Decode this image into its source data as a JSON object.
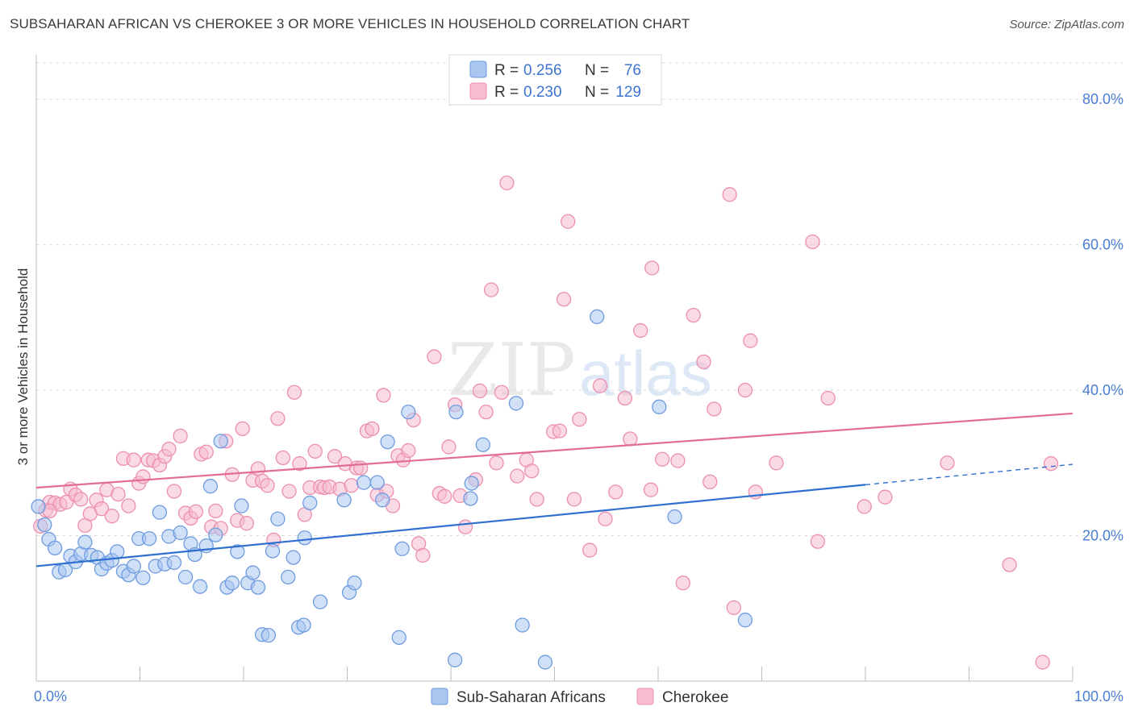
{
  "title": "SUBSAHARAN AFRICAN VS CHEROKEE 3 OR MORE VEHICLES IN HOUSEHOLD CORRELATION CHART",
  "source": "Source: ZipAtlas.com",
  "watermark": {
    "zip": "ZIP",
    "atlas": "atlas"
  },
  "legend": {
    "r_label": "R =",
    "n_label": "N =",
    "rows": [
      {
        "r": "0.256",
        "n": "76"
      },
      {
        "r": "0.230",
        "n": "129"
      }
    ]
  },
  "chart_data": {
    "type": "scatter",
    "xlabel": "",
    "ylabel": "3 or more Vehicles in Household",
    "xlim": [
      0,
      100
    ],
    "ylim": [
      0,
      85
    ],
    "grid": true,
    "x_tick_labels": [
      {
        "x": 0,
        "label": "0.0%"
      },
      {
        "x": 100,
        "label": "100.0%"
      }
    ],
    "y_tick_labels": [
      {
        "y": 20,
        "label": "20.0%"
      },
      {
        "y": 40,
        "label": "40.0%"
      },
      {
        "y": 60,
        "label": "60.0%"
      },
      {
        "y": 80,
        "label": "80.0%"
      }
    ],
    "colors": {
      "blue_fill": "#a9c6f0",
      "blue_stroke": "#6f9be0",
      "blue_line": "#2f6fd0",
      "pink_fill": "#f6bccf",
      "pink_stroke": "#ec8fae",
      "pink_line": "#e26c97"
    },
    "series": [
      {
        "name": "Sub-Saharan Africans",
        "r": 0.256,
        "n": 76,
        "trend": {
          "x0": 0,
          "y0": 15.8,
          "x1": 80,
          "y1": 27.0,
          "dash_x1": 100,
          "dash_y1": 29.8
        },
        "points": [
          [
            0.2,
            24.0
          ],
          [
            0.8,
            21.5
          ],
          [
            1.2,
            19.5
          ],
          [
            1.8,
            18.3
          ],
          [
            2.2,
            15.0
          ],
          [
            2.8,
            15.3
          ],
          [
            3.3,
            17.2
          ],
          [
            3.8,
            16.4
          ],
          [
            4.3,
            17.5
          ],
          [
            4.7,
            19.1
          ],
          [
            5.3,
            17.3
          ],
          [
            5.9,
            17.0
          ],
          [
            6.3,
            15.4
          ],
          [
            6.8,
            16.2
          ],
          [
            7.3,
            16.6
          ],
          [
            7.8,
            17.8
          ],
          [
            8.4,
            15.1
          ],
          [
            8.9,
            14.6
          ],
          [
            9.4,
            15.8
          ],
          [
            9.9,
            19.6
          ],
          [
            10.3,
            14.2
          ],
          [
            10.9,
            19.6
          ],
          [
            11.5,
            15.8
          ],
          [
            11.9,
            23.2
          ],
          [
            12.4,
            16.1
          ],
          [
            12.8,
            19.9
          ],
          [
            13.3,
            16.3
          ],
          [
            13.9,
            20.4
          ],
          [
            14.4,
            14.3
          ],
          [
            14.9,
            18.9
          ],
          [
            15.3,
            17.4
          ],
          [
            15.8,
            13.0
          ],
          [
            16.4,
            18.6
          ],
          [
            16.8,
            26.8
          ],
          [
            17.3,
            20.1
          ],
          [
            17.8,
            33.0
          ],
          [
            18.4,
            12.9
          ],
          [
            18.9,
            13.5
          ],
          [
            19.4,
            17.8
          ],
          [
            19.8,
            24.1
          ],
          [
            20.4,
            13.5
          ],
          [
            20.9,
            14.9
          ],
          [
            21.4,
            12.9
          ],
          [
            21.8,
            6.4
          ],
          [
            22.4,
            6.3
          ],
          [
            22.8,
            17.9
          ],
          [
            23.3,
            22.3
          ],
          [
            24.3,
            14.3
          ],
          [
            24.8,
            17.0
          ],
          [
            25.3,
            7.4
          ],
          [
            25.8,
            7.7
          ],
          [
            25.9,
            19.7
          ],
          [
            26.4,
            24.5
          ],
          [
            27.4,
            10.9
          ],
          [
            29.7,
            24.9
          ],
          [
            30.2,
            12.2
          ],
          [
            30.7,
            13.5
          ],
          [
            31.6,
            27.3
          ],
          [
            32.9,
            27.3
          ],
          [
            33.4,
            24.9
          ],
          [
            33.9,
            32.9
          ],
          [
            35.0,
            6.0
          ],
          [
            35.3,
            18.2
          ],
          [
            35.9,
            37.0
          ],
          [
            40.4,
            2.9
          ],
          [
            40.5,
            37.0
          ],
          [
            41.9,
            25.1
          ],
          [
            42.0,
            27.2
          ],
          [
            43.1,
            32.5
          ],
          [
            46.3,
            38.2
          ],
          [
            46.9,
            7.7
          ],
          [
            49.1,
            2.6
          ],
          [
            54.1,
            50.1
          ],
          [
            60.1,
            37.7
          ],
          [
            61.6,
            22.6
          ],
          [
            68.4,
            8.4
          ]
        ]
      },
      {
        "name": "Cherokee",
        "r": 0.23,
        "n": 129,
        "trend": {
          "x0": 0,
          "y0": 26.6,
          "x1": 100,
          "y1": 36.8
        },
        "points": [
          [
            0.4,
            21.3
          ],
          [
            0.9,
            23.5
          ],
          [
            1.3,
            24.6
          ],
          [
            1.8,
            24.5
          ],
          [
            2.3,
            24.3
          ],
          [
            2.9,
            24.6
          ],
          [
            3.3,
            26.4
          ],
          [
            3.8,
            25.6
          ],
          [
            4.3,
            25.0
          ],
          [
            4.7,
            21.4
          ],
          [
            5.2,
            23.0
          ],
          [
            5.8,
            24.9
          ],
          [
            6.3,
            23.7
          ],
          [
            6.8,
            26.3
          ],
          [
            7.3,
            22.7
          ],
          [
            7.9,
            25.7
          ],
          [
            8.4,
            30.6
          ],
          [
            8.9,
            24.1
          ],
          [
            9.4,
            30.4
          ],
          [
            9.9,
            27.2
          ],
          [
            10.3,
            28.1
          ],
          [
            10.8,
            30.4
          ],
          [
            11.3,
            30.3
          ],
          [
            11.9,
            29.7
          ],
          [
            12.4,
            30.9
          ],
          [
            12.8,
            31.9
          ],
          [
            13.3,
            26.1
          ],
          [
            13.9,
            33.7
          ],
          [
            14.4,
            23.1
          ],
          [
            14.9,
            22.4
          ],
          [
            15.4,
            23.3
          ],
          [
            15.9,
            31.2
          ],
          [
            16.4,
            31.5
          ],
          [
            16.9,
            21.2
          ],
          [
            17.3,
            23.4
          ],
          [
            17.8,
            21.0
          ],
          [
            18.3,
            33.0
          ],
          [
            18.9,
            28.4
          ],
          [
            19.4,
            22.1
          ],
          [
            19.9,
            34.7
          ],
          [
            20.3,
            21.7
          ],
          [
            20.9,
            27.6
          ],
          [
            21.4,
            29.2
          ],
          [
            21.8,
            27.5
          ],
          [
            22.3,
            26.9
          ],
          [
            22.9,
            19.4
          ],
          [
            23.3,
            36.1
          ],
          [
            23.8,
            30.7
          ],
          [
            24.4,
            26.1
          ],
          [
            24.9,
            39.7
          ],
          [
            25.4,
            29.9
          ],
          [
            25.9,
            22.9
          ],
          [
            26.4,
            26.6
          ],
          [
            26.9,
            31.6
          ],
          [
            27.4,
            26.7
          ],
          [
            27.8,
            26.6
          ],
          [
            28.3,
            26.7
          ],
          [
            28.8,
            30.9
          ],
          [
            29.3,
            26.4
          ],
          [
            29.8,
            29.9
          ],
          [
            30.4,
            26.9
          ],
          [
            30.9,
            29.3
          ],
          [
            31.3,
            29.3
          ],
          [
            31.9,
            34.4
          ],
          [
            32.4,
            34.7
          ],
          [
            32.9,
            25.6
          ],
          [
            33.5,
            39.3
          ],
          [
            33.8,
            26.1
          ],
          [
            34.4,
            24.1
          ],
          [
            34.9,
            31.0
          ],
          [
            35.4,
            30.4
          ],
          [
            35.9,
            31.7
          ],
          [
            36.4,
            35.9
          ],
          [
            36.9,
            18.9
          ],
          [
            37.3,
            17.3
          ],
          [
            38.4,
            44.6
          ],
          [
            38.9,
            25.8
          ],
          [
            39.4,
            25.4
          ],
          [
            39.8,
            32.2
          ],
          [
            40.4,
            38.0
          ],
          [
            40.9,
            25.5
          ],
          [
            41.4,
            21.2
          ],
          [
            42.4,
            27.7
          ],
          [
            42.8,
            39.9
          ],
          [
            43.4,
            37.0
          ],
          [
            43.9,
            53.8
          ],
          [
            44.4,
            30.0
          ],
          [
            44.9,
            39.7
          ],
          [
            45.4,
            68.5
          ],
          [
            46.4,
            28.2
          ],
          [
            47.3,
            30.4
          ],
          [
            47.8,
            28.9
          ],
          [
            48.3,
            25.0
          ],
          [
            49.9,
            34.3
          ],
          [
            50.5,
            34.4
          ],
          [
            50.9,
            52.5
          ],
          [
            51.3,
            63.2
          ],
          [
            51.9,
            25.0
          ],
          [
            52.4,
            36.0
          ],
          [
            53.4,
            18.0
          ],
          [
            54.4,
            40.6
          ],
          [
            54.9,
            22.3
          ],
          [
            55.9,
            26.0
          ],
          [
            56.8,
            38.9
          ],
          [
            57.3,
            33.3
          ],
          [
            58.3,
            48.2
          ],
          [
            59.4,
            56.8
          ],
          [
            59.3,
            26.3
          ],
          [
            60.4,
            30.5
          ],
          [
            61.9,
            30.3
          ],
          [
            62.4,
            13.5
          ],
          [
            63.4,
            50.3
          ],
          [
            64.4,
            43.9
          ],
          [
            65.0,
            27.4
          ],
          [
            65.4,
            37.4
          ],
          [
            66.9,
            66.9
          ],
          [
            67.3,
            10.1
          ],
          [
            68.4,
            40.0
          ],
          [
            68.9,
            46.8
          ],
          [
            69.4,
            26.0
          ],
          [
            71.4,
            30.0
          ],
          [
            74.9,
            60.4
          ],
          [
            75.4,
            19.2
          ],
          [
            76.4,
            38.9
          ],
          [
            79.9,
            24.0
          ],
          [
            81.9,
            25.3
          ],
          [
            87.9,
            30.0
          ],
          [
            93.9,
            16.0
          ],
          [
            97.9,
            29.9
          ],
          [
            97.1,
            2.6
          ],
          [
            1.3,
            23.4
          ]
        ]
      }
    ]
  },
  "bottom_legend": [
    "Sub-Saharan Africans",
    "Cherokee"
  ]
}
